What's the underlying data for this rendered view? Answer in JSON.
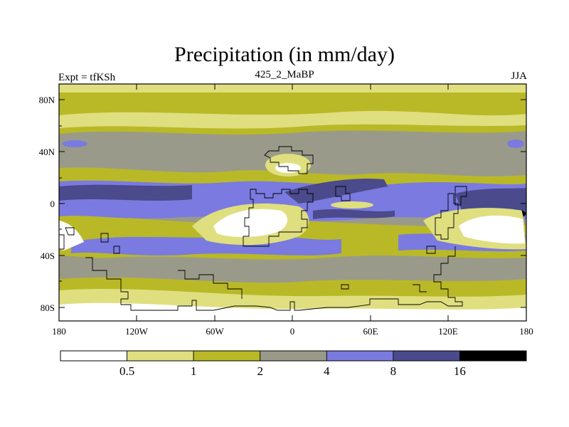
{
  "title": "Precipitation (in mm/day)",
  "subtitle_left": "Expt = tfKSh",
  "subtitle_center": "425_2_MaBP",
  "subtitle_right": "JJA",
  "map": {
    "lat_labels": [
      "80N",
      "40N",
      "0",
      "40S",
      "80S"
    ],
    "lon_labels": [
      "180",
      "120W",
      "60W",
      "0",
      "60E",
      "120E",
      "180"
    ]
  },
  "colorbar": {
    "boundaries": [
      "0.5",
      "1",
      "2",
      "4",
      "8",
      "16"
    ],
    "colors": [
      "#ffffff",
      "#dfdf80",
      "#b9b927",
      "#9a9a8a",
      "#7a7ae0",
      "#4a4a8c",
      "#000000"
    ]
  }
}
